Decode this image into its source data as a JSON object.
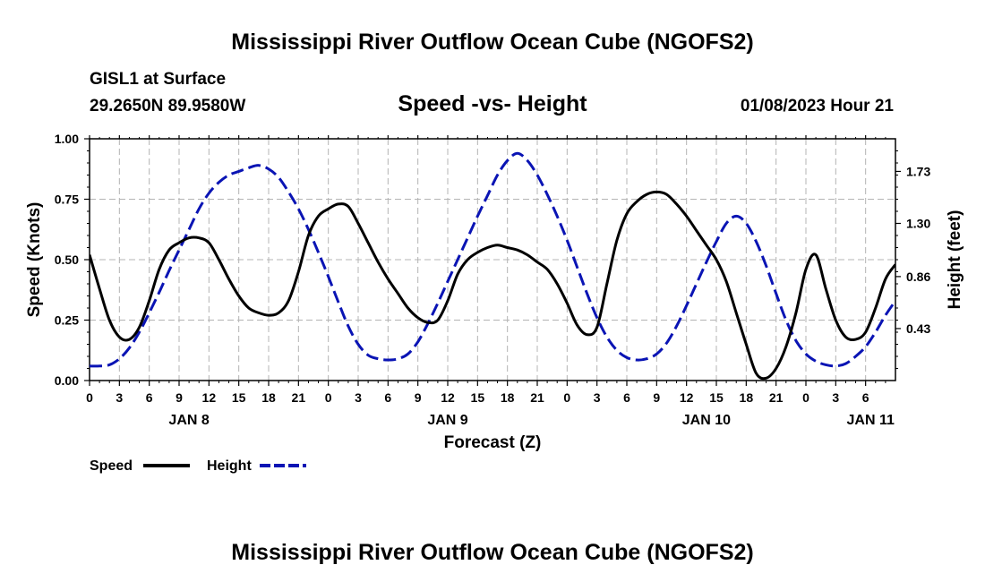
{
  "header": {
    "title": "Mississippi River Outflow Ocean Cube (NGOFS2)",
    "station": "GISL1 at Surface",
    "coords": "29.2650N  89.9580W",
    "subtitle": "Speed -vs- Height",
    "datetime": "01/08/2023 Hour 21"
  },
  "footer": {
    "title": "Mississippi River Outflow Ocean Cube (NGOFS2)"
  },
  "chart_data": {
    "type": "line",
    "title": "Speed -vs- Height",
    "xlabel": "Forecast (Z)",
    "ylabel": "Speed (Knots)",
    "y2label": "Height (feet)",
    "x_range_hours": [
      0,
      81
    ],
    "x_tick_step_hours": 3,
    "x_tick_labels": [
      "0",
      "3",
      "6",
      "9",
      "12",
      "15",
      "18",
      "21",
      "0",
      "3",
      "6",
      "9",
      "12",
      "15",
      "18",
      "21",
      "0",
      "3",
      "6",
      "9",
      "12",
      "15",
      "18",
      "21",
      "0",
      "3",
      "6"
    ],
    "day_labels": [
      {
        "label": "JAN 8",
        "hour": 10
      },
      {
        "label": "JAN 9",
        "hour": 36
      },
      {
        "label": "JAN 10",
        "hour": 62
      },
      {
        "label": "JAN 11",
        "hour": 78.5
      }
    ],
    "ylim": [
      0,
      1.0
    ],
    "y_ticks": [
      0.0,
      0.25,
      0.5,
      0.75,
      1.0
    ],
    "y_tick_labels": [
      "0.00",
      "0.25",
      "0.50",
      "0.75",
      "1.00"
    ],
    "y2lim": [
      0.0,
      2.0
    ],
    "y2_ticks": [
      0.43,
      0.86,
      1.3,
      1.73
    ],
    "y2_tick_labels": [
      "0.43",
      "0.86",
      "1.30",
      "1.73"
    ],
    "grid": true,
    "legend_position": "bottom-left",
    "series": [
      {
        "name": "Speed",
        "axis": "left",
        "color": "#000000",
        "dash": "solid",
        "x": [
          0,
          1,
          2,
          3,
          4,
          5,
          6,
          7,
          8,
          9,
          10,
          11,
          12,
          13,
          14,
          15,
          16,
          17,
          18,
          19,
          20,
          21,
          22,
          23,
          24,
          25,
          26,
          27,
          28,
          29,
          30,
          31,
          32,
          33,
          34,
          35,
          36,
          37,
          38,
          39,
          40,
          41,
          42,
          43,
          44,
          45,
          46,
          47,
          48,
          49,
          50,
          51,
          52,
          53,
          54,
          55,
          56,
          57,
          58,
          59,
          60,
          61,
          62,
          63,
          64,
          65,
          66,
          67,
          68,
          69,
          70,
          71,
          72,
          73,
          74,
          75,
          76,
          77,
          78,
          79,
          80,
          81
        ],
        "values": [
          0.52,
          0.38,
          0.25,
          0.18,
          0.17,
          0.22,
          0.33,
          0.46,
          0.54,
          0.57,
          0.59,
          0.59,
          0.57,
          0.5,
          0.42,
          0.35,
          0.3,
          0.28,
          0.27,
          0.28,
          0.33,
          0.45,
          0.6,
          0.68,
          0.71,
          0.73,
          0.72,
          0.65,
          0.57,
          0.49,
          0.42,
          0.36,
          0.3,
          0.26,
          0.24,
          0.25,
          0.33,
          0.44,
          0.5,
          0.53,
          0.55,
          0.56,
          0.55,
          0.54,
          0.52,
          0.49,
          0.46,
          0.4,
          0.32,
          0.23,
          0.19,
          0.22,
          0.4,
          0.58,
          0.69,
          0.74,
          0.77,
          0.78,
          0.77,
          0.73,
          0.68,
          0.62,
          0.56,
          0.5,
          0.41,
          0.28,
          0.15,
          0.03,
          0.01,
          0.05,
          0.14,
          0.28,
          0.46,
          0.52,
          0.38,
          0.25,
          0.18,
          0.17,
          0.2,
          0.3,
          0.42,
          0.48
        ]
      },
      {
        "name": "Height",
        "axis": "right",
        "color": "#0a14b4",
        "dash": "dashed",
        "x": [
          0,
          1,
          2,
          3,
          4,
          5,
          6,
          7,
          8,
          9,
          10,
          11,
          12,
          13,
          14,
          15,
          16,
          17,
          18,
          19,
          20,
          21,
          22,
          23,
          24,
          25,
          26,
          27,
          28,
          29,
          30,
          31,
          32,
          33,
          34,
          35,
          36,
          37,
          38,
          39,
          40,
          41,
          42,
          43,
          44,
          45,
          46,
          47,
          48,
          49,
          50,
          51,
          52,
          53,
          54,
          55,
          56,
          57,
          58,
          59,
          60,
          61,
          62,
          63,
          64,
          65,
          66,
          67,
          68,
          69,
          70,
          71,
          72,
          73,
          74,
          75,
          76,
          77,
          78,
          79,
          80,
          81
        ],
        "values": [
          0.12,
          0.12,
          0.13,
          0.18,
          0.27,
          0.4,
          0.56,
          0.73,
          0.91,
          1.08,
          1.25,
          1.42,
          1.55,
          1.64,
          1.7,
          1.73,
          1.76,
          1.78,
          1.75,
          1.68,
          1.56,
          1.42,
          1.25,
          1.06,
          0.86,
          0.65,
          0.45,
          0.3,
          0.21,
          0.18,
          0.17,
          0.18,
          0.22,
          0.32,
          0.47,
          0.64,
          0.82,
          1.0,
          1.18,
          1.36,
          1.53,
          1.7,
          1.82,
          1.88,
          1.82,
          1.7,
          1.54,
          1.36,
          1.16,
          0.94,
          0.72,
          0.52,
          0.36,
          0.25,
          0.19,
          0.17,
          0.18,
          0.22,
          0.31,
          0.45,
          0.62,
          0.8,
          0.98,
          1.15,
          1.3,
          1.36,
          1.3,
          1.15,
          0.95,
          0.72,
          0.5,
          0.33,
          0.22,
          0.16,
          0.13,
          0.12,
          0.14,
          0.2,
          0.28,
          0.4,
          0.54,
          0.66
        ]
      }
    ]
  },
  "legend": {
    "speed_label": "Speed",
    "height_label": "Height"
  }
}
